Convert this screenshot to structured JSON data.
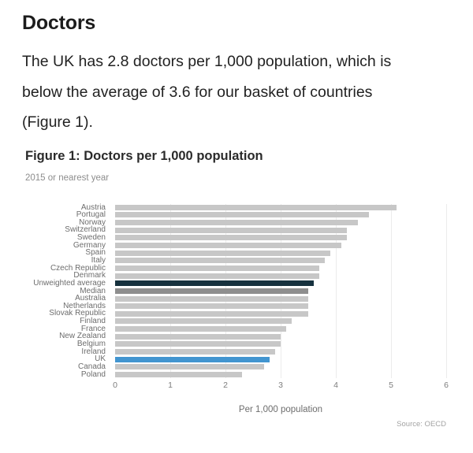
{
  "page": {
    "heading": "Doctors",
    "paragraph_lines": [
      "The UK has 2.8 doctors per 1,000 population, which is",
      "below the average of 3.6 for our basket of countries",
      "(Figure 1)."
    ]
  },
  "figure": {
    "title": "Figure 1: Doctors per 1,000 population",
    "subtitle": "2015 or nearest year",
    "source": "Source: OECD"
  },
  "chart_data": {
    "type": "bar",
    "orientation": "horizontal",
    "title": "Figure 1: Doctors per 1,000 population",
    "subtitle": "2015 or nearest year",
    "xlabel": "Per 1,000 population",
    "xlim": [
      0,
      6
    ],
    "xticks": [
      0,
      1,
      2,
      3,
      4,
      5,
      6
    ],
    "grid": true,
    "legend": "none",
    "source": "Source: OECD",
    "categories": [
      "Austria",
      "Portugal",
      "Norway",
      "Switzerland",
      "Sweden",
      "Germany",
      "Spain",
      "Italy",
      "Czech Republic",
      "Denmark",
      "Unweighted average",
      "Median",
      "Australia",
      "Netherlands",
      "Slovak Republic",
      "Finland",
      "France",
      "New Zealand",
      "Belgium",
      "Ireland",
      "UK",
      "Canada",
      "Poland"
    ],
    "values": [
      5.1,
      4.6,
      4.4,
      4.2,
      4.2,
      4.1,
      3.9,
      3.8,
      3.7,
      3.7,
      3.6,
      3.5,
      3.5,
      3.5,
      3.5,
      3.2,
      3.1,
      3.0,
      3.0,
      2.9,
      2.8,
      2.7,
      2.3
    ],
    "colors": {
      "default": "#c7c7c7",
      "gridline": "#ececec",
      "highlights": {
        "Unweighted average": "#16313e",
        "Median": "#8e8e8e",
        "UK": "#4295d0"
      }
    }
  }
}
